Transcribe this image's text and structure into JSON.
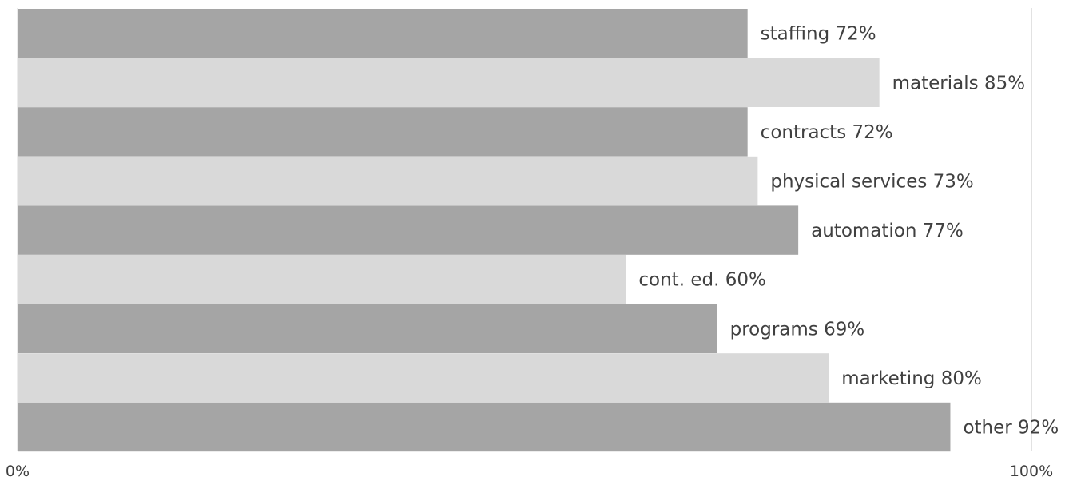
{
  "chart_data": {
    "type": "bar",
    "orientation": "horizontal",
    "categories": [
      "staffing",
      "materials",
      "contracts",
      "physical services",
      "automation",
      "cont. ed.",
      "programs",
      "marketing",
      "other"
    ],
    "values": [
      72,
      85,
      72,
      73,
      77,
      60,
      69,
      80,
      92
    ],
    "labels": [
      "staffing 72%",
      "materials 85%",
      "contracts 72%",
      "physical services 73%",
      "automation 77%",
      "cont. ed. 60%",
      "programs 69%",
      "marketing 80%",
      "other 92%"
    ],
    "x_ticks": [
      "0%",
      "100%"
    ],
    "xlim": [
      0,
      100
    ],
    "grid": "vertical line at 100%",
    "legend": "none",
    "colors": [
      "#a5a5a5",
      "#d9d9d9"
    ]
  }
}
